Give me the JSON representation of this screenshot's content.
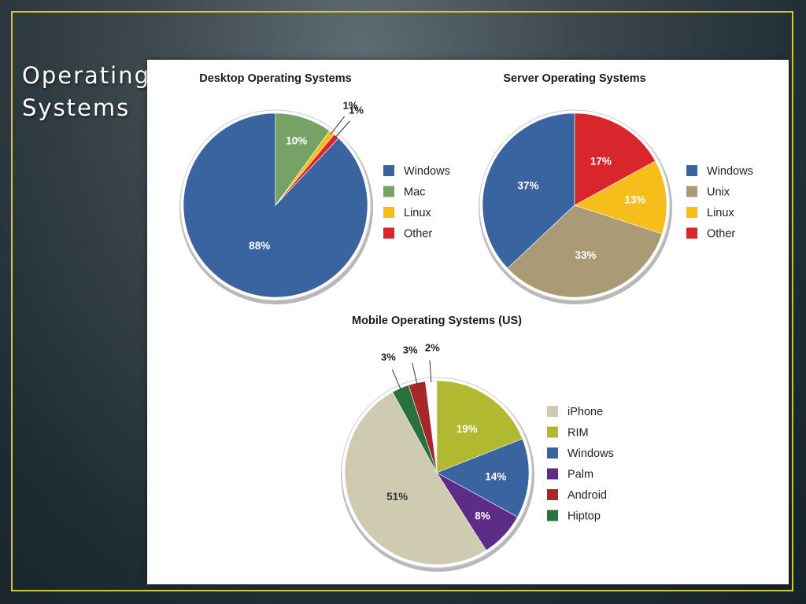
{
  "slide": {
    "title_line1": "Operating",
    "title_line2": "Systems"
  },
  "chart_data": [
    {
      "type": "pie",
      "title": "Desktop Operating Systems",
      "categories": [
        "Windows",
        "Mac",
        "Linux",
        "Other"
      ],
      "values": [
        88,
        10,
        1,
        1
      ],
      "labels": [
        "88%",
        "10%",
        "1%",
        "1%"
      ],
      "colors": [
        "#3a64a0",
        "#76a365",
        "#f5be1a",
        "#d9262c"
      ],
      "legend": "right"
    },
    {
      "type": "pie",
      "title": "Server Operating Systems",
      "categories": [
        "Windows",
        "Unix",
        "Linux",
        "Other"
      ],
      "values": [
        37,
        33,
        13,
        17
      ],
      "labels": [
        "37%",
        "33%",
        "13%",
        "17%"
      ],
      "colors": [
        "#3a64a0",
        "#aa9a76",
        "#f5be1a",
        "#d9262c"
      ],
      "legend": "right"
    },
    {
      "type": "pie",
      "title": "Mobile Operating Systems (US)",
      "categories": [
        "iPhone",
        "RIM",
        "Windows",
        "Palm",
        "Android",
        "Hiptop"
      ],
      "values": [
        51,
        19,
        14,
        8,
        3,
        3
      ],
      "unlabeled_remainder": 2,
      "labels": [
        "51%",
        "19%",
        "14%",
        "8%",
        "3%",
        "3%"
      ],
      "remainder_label": "2%",
      "colors": [
        "#cfcbb1",
        "#b0b92f",
        "#3a64a0",
        "#5c2c86",
        "#a62729",
        "#2a7140"
      ],
      "legend": "right"
    }
  ]
}
